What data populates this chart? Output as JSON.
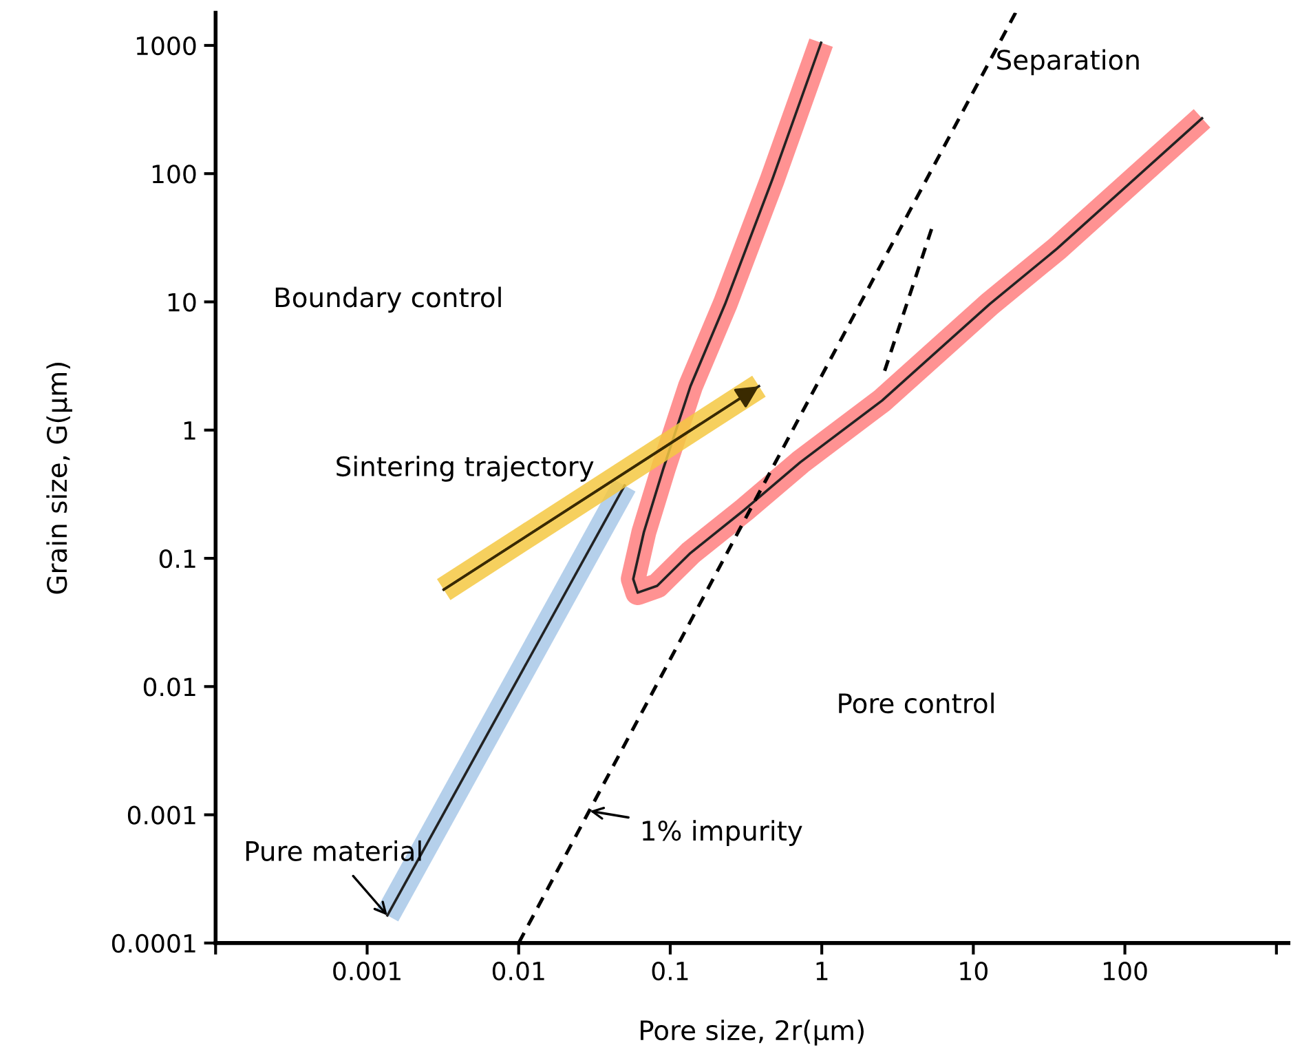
{
  "chart_data": {
    "type": "line",
    "xlabel": "Pore size, 2r(µm)",
    "ylabel": "Grain size, G(µm)",
    "log": "xy",
    "grid": false,
    "legend": false,
    "xlim": [
      0.0001,
      1200
    ],
    "ylim": [
      0.0001,
      1800
    ],
    "xticks": [
      {
        "value": 0.0001,
        "label": null
      },
      0.001,
      0.01,
      0.1,
      1,
      10,
      100,
      {
        "value": 1000,
        "label": null
      }
    ],
    "yticks": [
      0.0001,
      0.001,
      0.01,
      0.1,
      1,
      10,
      100,
      1000
    ],
    "annotations": [
      "Boundary control",
      "Pore control",
      {
        "text": "1% impurity",
        "x": 0.0295,
        "y": 0.00107
      },
      "Separation"
    ],
    "series": [
      {
        "name": "Pure material",
        "color": "#a8c8e8",
        "line_style": "solid",
        "x": [
          0.00136,
          0.05
        ],
        "values": [
          0.000164,
          0.37
        ]
      },
      {
        "color": "#ff7f7f",
        "line_style": "solid",
        "x": [
          0.99,
          0.47,
          0.23,
          0.136,
          0.09,
          0.067,
          0.057,
          0.061,
          0.082,
          0.136,
          0.31,
          0.72,
          2.5,
          12.8,
          35.7,
          323
        ],
        "values": [
          1050,
          89,
          9.6,
          2.2,
          0.5,
          0.16,
          0.069,
          0.054,
          0.061,
          0.11,
          0.24,
          0.56,
          1.7,
          9.6,
          26,
          270
        ]
      },
      {
        "name": "Sintering trajectory",
        "color": "#f5c842",
        "line_style": "solid",
        "x": [
          0.0032,
          0.385
        ],
        "values": [
          0.057,
          2.2
        ]
      },
      {
        "color": "#000000",
        "line_style": "dashed",
        "x": [
          0.01,
          19
        ],
        "values": [
          0.0001,
          1800
        ]
      },
      {
        "color": "#000000",
        "line_style": "dashed",
        "x": [
          2.6,
          5.3
        ],
        "values": [
          2.9,
          37
        ]
      }
    ]
  }
}
